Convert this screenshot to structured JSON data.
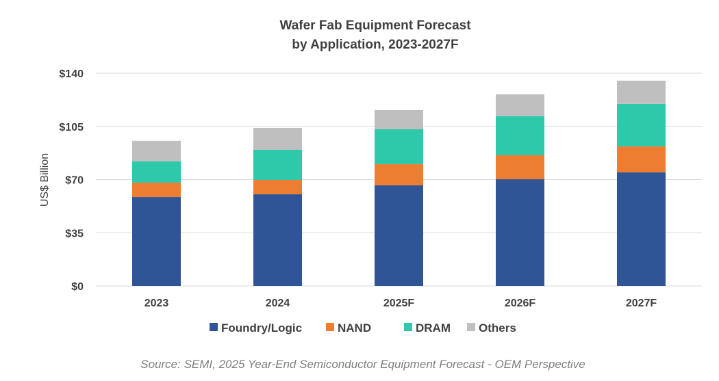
{
  "chart_data": {
    "type": "bar",
    "stacked": true,
    "title": [
      "Wafer Fab Equipment Forecast",
      "by Application, 2023-2027F"
    ],
    "xlabel": "",
    "ylabel": "US$ Billion",
    "ylim": [
      0,
      140
    ],
    "yticks": [
      0,
      35,
      70,
      105,
      140
    ],
    "ytick_labels": [
      "$0",
      "$35",
      "$70",
      "$105",
      "$140"
    ],
    "grid": true,
    "legend_position": "bottom",
    "categories": [
      "2023",
      "2024",
      "2025F",
      "2026F",
      "2027F"
    ],
    "series": [
      {
        "name": "Foundry/Logic",
        "color": "#2F5597",
        "values": [
          58.5,
          60.3,
          66.2,
          70.2,
          74.7
        ]
      },
      {
        "name": "NAND",
        "color": "#ED7D31",
        "values": [
          9.5,
          9.5,
          13.9,
          15.8,
          17.1
        ]
      },
      {
        "name": "DRAM",
        "color": "#2EC8AA",
        "values": [
          14.0,
          19.8,
          23.0,
          25.7,
          28.0
        ]
      },
      {
        "name": "Others",
        "color": "#BFBFBF",
        "values": [
          13.5,
          14.4,
          12.6,
          14.4,
          15.3
        ]
      }
    ],
    "source": "Source: SEMI, 2025 Year-End Semiconductor Equipment Forecast - OEM Perspective"
  }
}
